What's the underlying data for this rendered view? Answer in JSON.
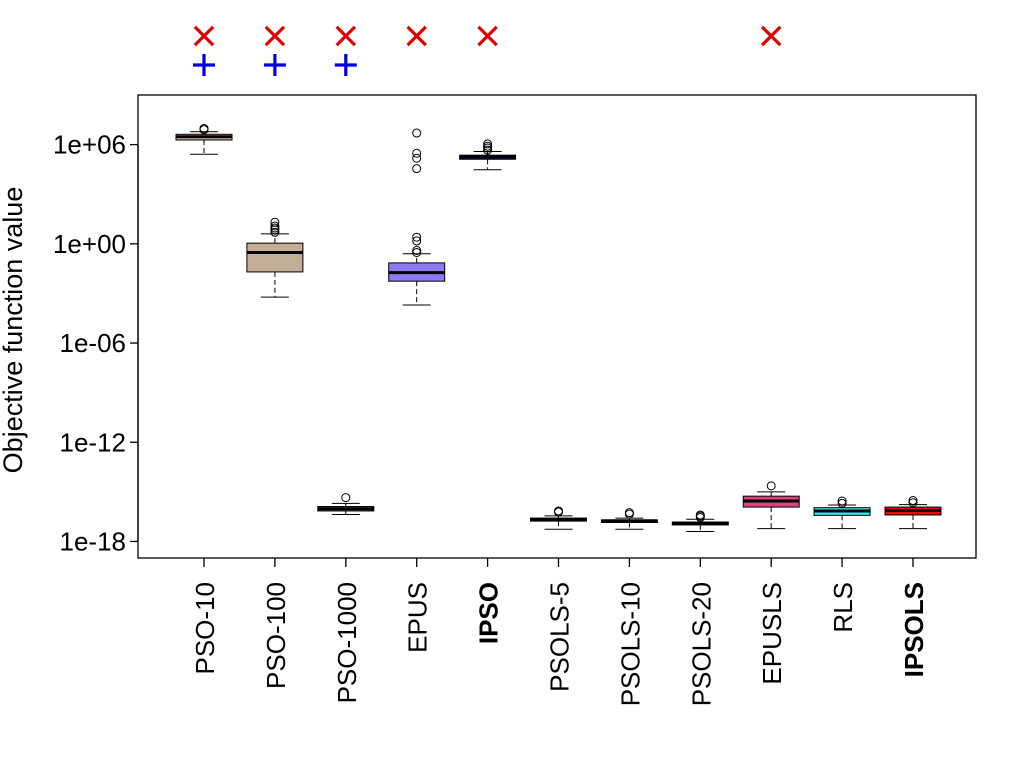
{
  "chart_data": {
    "type": "box",
    "ylabel": "Objective function value",
    "y_scale": "log10",
    "ylim": [
      1e-19,
      1000000000.0
    ],
    "yticks": [
      {
        "value": 1000000.0,
        "label": "1e+06"
      },
      {
        "value": 1.0,
        "label": "1e+00"
      },
      {
        "value": 1e-06,
        "label": "1e-06"
      },
      {
        "value": 1e-12,
        "label": "1e-12"
      },
      {
        "value": 1e-18,
        "label": "1e-18"
      }
    ],
    "marker_legend": {
      "x_color": "#e00000",
      "plus_color": "#0000e0"
    },
    "boxes": [
      {
        "label": "PSO-10",
        "bold": false,
        "fill": "#d9b99b",
        "lower_whisker": 260000.0,
        "q1": 1900000.0,
        "median": 3000000.0,
        "q3": 4200000.0,
        "upper_whisker": 6000000.0,
        "outliers": [
          8000000.0,
          9500000.0
        ],
        "x_marker": true,
        "plus_marker": true
      },
      {
        "label": "PSO-100",
        "bold": false,
        "fill": "#c4ad96",
        "lower_whisker": 0.0006,
        "q1": 0.02,
        "median": 0.3,
        "q3": 1.1,
        "upper_whisker": 4.0,
        "outliers": [
          5,
          7,
          9,
          12,
          20
        ],
        "x_marker": true,
        "plus_marker": true
      },
      {
        "label": "PSO-1000",
        "bold": false,
        "fill": "#8e8e6c",
        "lower_whisker": 4.3e-17,
        "q1": 7e-17,
        "median": 9.5e-17,
        "q3": 1.3e-16,
        "upper_whisker": 2e-16,
        "outliers": [
          4.5e-16
        ],
        "x_marker": true,
        "plus_marker": true
      },
      {
        "label": "EPUS",
        "bold": false,
        "fill": "#8b7bef",
        "lower_whisker": 0.0002,
        "q1": 0.0055,
        "median": 0.018,
        "q3": 0.07,
        "upper_whisker": 0.25,
        "outliers": [
          0.3,
          0.4,
          1.5,
          2.5,
          35000.0,
          150000.0,
          300000.0,
          5000000.0
        ],
        "x_marker": true,
        "plus_marker": false
      },
      {
        "label": "IPSO",
        "bold": true,
        "fill": "#0000a8",
        "lower_whisker": 30000.0,
        "q1": 130000.0,
        "median": 180000.0,
        "q3": 230000.0,
        "upper_whisker": 380000.0,
        "outliers": [
          460000.0,
          620000.0,
          800000.0,
          1100000.0
        ],
        "x_marker": true,
        "plus_marker": false
      },
      {
        "label": "PSOLS-5",
        "bold": false,
        "fill": "#d9b99b",
        "lower_whisker": 5.5e-18,
        "q1": 1.7e-17,
        "median": 2e-17,
        "q3": 2.6e-17,
        "upper_whisker": 3.5e-17,
        "outliers": [
          7e-17,
          6e-17
        ],
        "x_marker": false,
        "plus_marker": false
      },
      {
        "label": "PSOLS-10",
        "bold": false,
        "fill": "#c4ad96",
        "lower_whisker": 5.5e-18,
        "q1": 1.4e-17,
        "median": 1.8e-17,
        "q3": 1.95e-17,
        "upper_whisker": 2.6e-17,
        "outliers": [
          5.5e-17,
          4.5e-17
        ],
        "x_marker": false,
        "plus_marker": false
      },
      {
        "label": "PSOLS-20",
        "bold": false,
        "fill": "#8e8e6c",
        "lower_whisker": 4e-18,
        "q1": 1e-17,
        "median": 1.3e-17,
        "q3": 1.5e-17,
        "upper_whisker": 2.2e-17,
        "outliers": [
          2.8e-17,
          3.4e-17,
          4e-17
        ],
        "x_marker": false,
        "plus_marker": false
      },
      {
        "label": "EPUSLS",
        "bold": false,
        "fill": "#d8457f",
        "lower_whisker": 6e-18,
        "q1": 1.2e-16,
        "median": 2.8e-16,
        "q3": 5.5e-16,
        "upper_whisker": 1e-15,
        "outliers": [
          2.3e-15
        ],
        "x_marker": true,
        "plus_marker": false
      },
      {
        "label": "RLS",
        "bold": false,
        "fill": "#33eeee",
        "lower_whisker": 6e-18,
        "q1": 3.8e-17,
        "median": 7e-17,
        "q3": 1.1e-16,
        "upper_whisker": 1.6e-16,
        "outliers": [
          2e-16,
          2.8e-16
        ],
        "x_marker": false,
        "plus_marker": false
      },
      {
        "label": "IPSOLS",
        "bold": true,
        "fill": "#e01010",
        "lower_whisker": 6e-18,
        "q1": 4e-17,
        "median": 7.5e-17,
        "q3": 1.2e-16,
        "upper_whisker": 1.7e-16,
        "outliers": [
          2.2e-16,
          3e-16
        ],
        "x_marker": false,
        "plus_marker": false
      }
    ]
  }
}
